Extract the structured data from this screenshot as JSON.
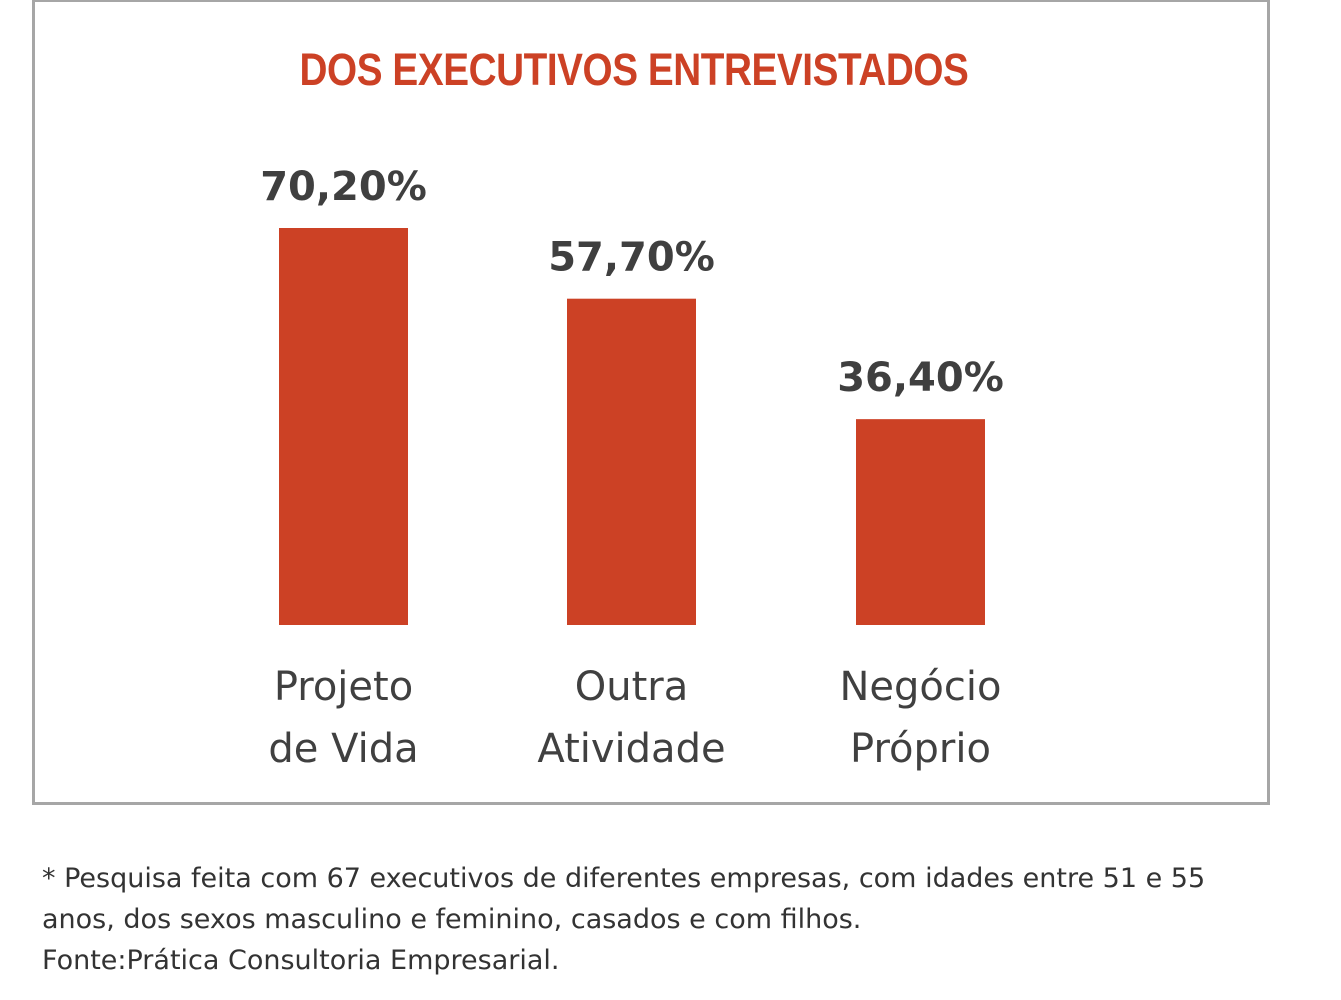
{
  "colors": {
    "bar": "#cc4125",
    "title": "#cc4125",
    "value_label": "#3f3f3f",
    "category_label": "#404040",
    "frame": "#a6a6a6"
  },
  "chart_data": {
    "type": "bar",
    "title": "DOS EXECUTIVOS ENTREVISTADOS",
    "xlabel": "",
    "ylabel": "",
    "categories": [
      [
        "Projeto",
        "de Vida"
      ],
      [
        "Outra",
        "Atividade"
      ],
      [
        "Negócio",
        "Próprio"
      ]
    ],
    "values": [
      70.2,
      57.7,
      36.4
    ],
    "value_labels": [
      "70,20%",
      "57,70%",
      "36,40%"
    ],
    "unit": "%",
    "ylim": [
      0,
      70.2
    ],
    "grid": false,
    "legend": "none",
    "axes_visible": false
  },
  "footnote": {
    "lines": [
      "* Pesquisa feita com 67 executivos de diferentes empresas, com idades entre 51 e 55",
      "anos, dos sexos masculino e feminino, casados e com filhos.",
      "Fonte:Prática Consultoria Empresarial."
    ]
  }
}
